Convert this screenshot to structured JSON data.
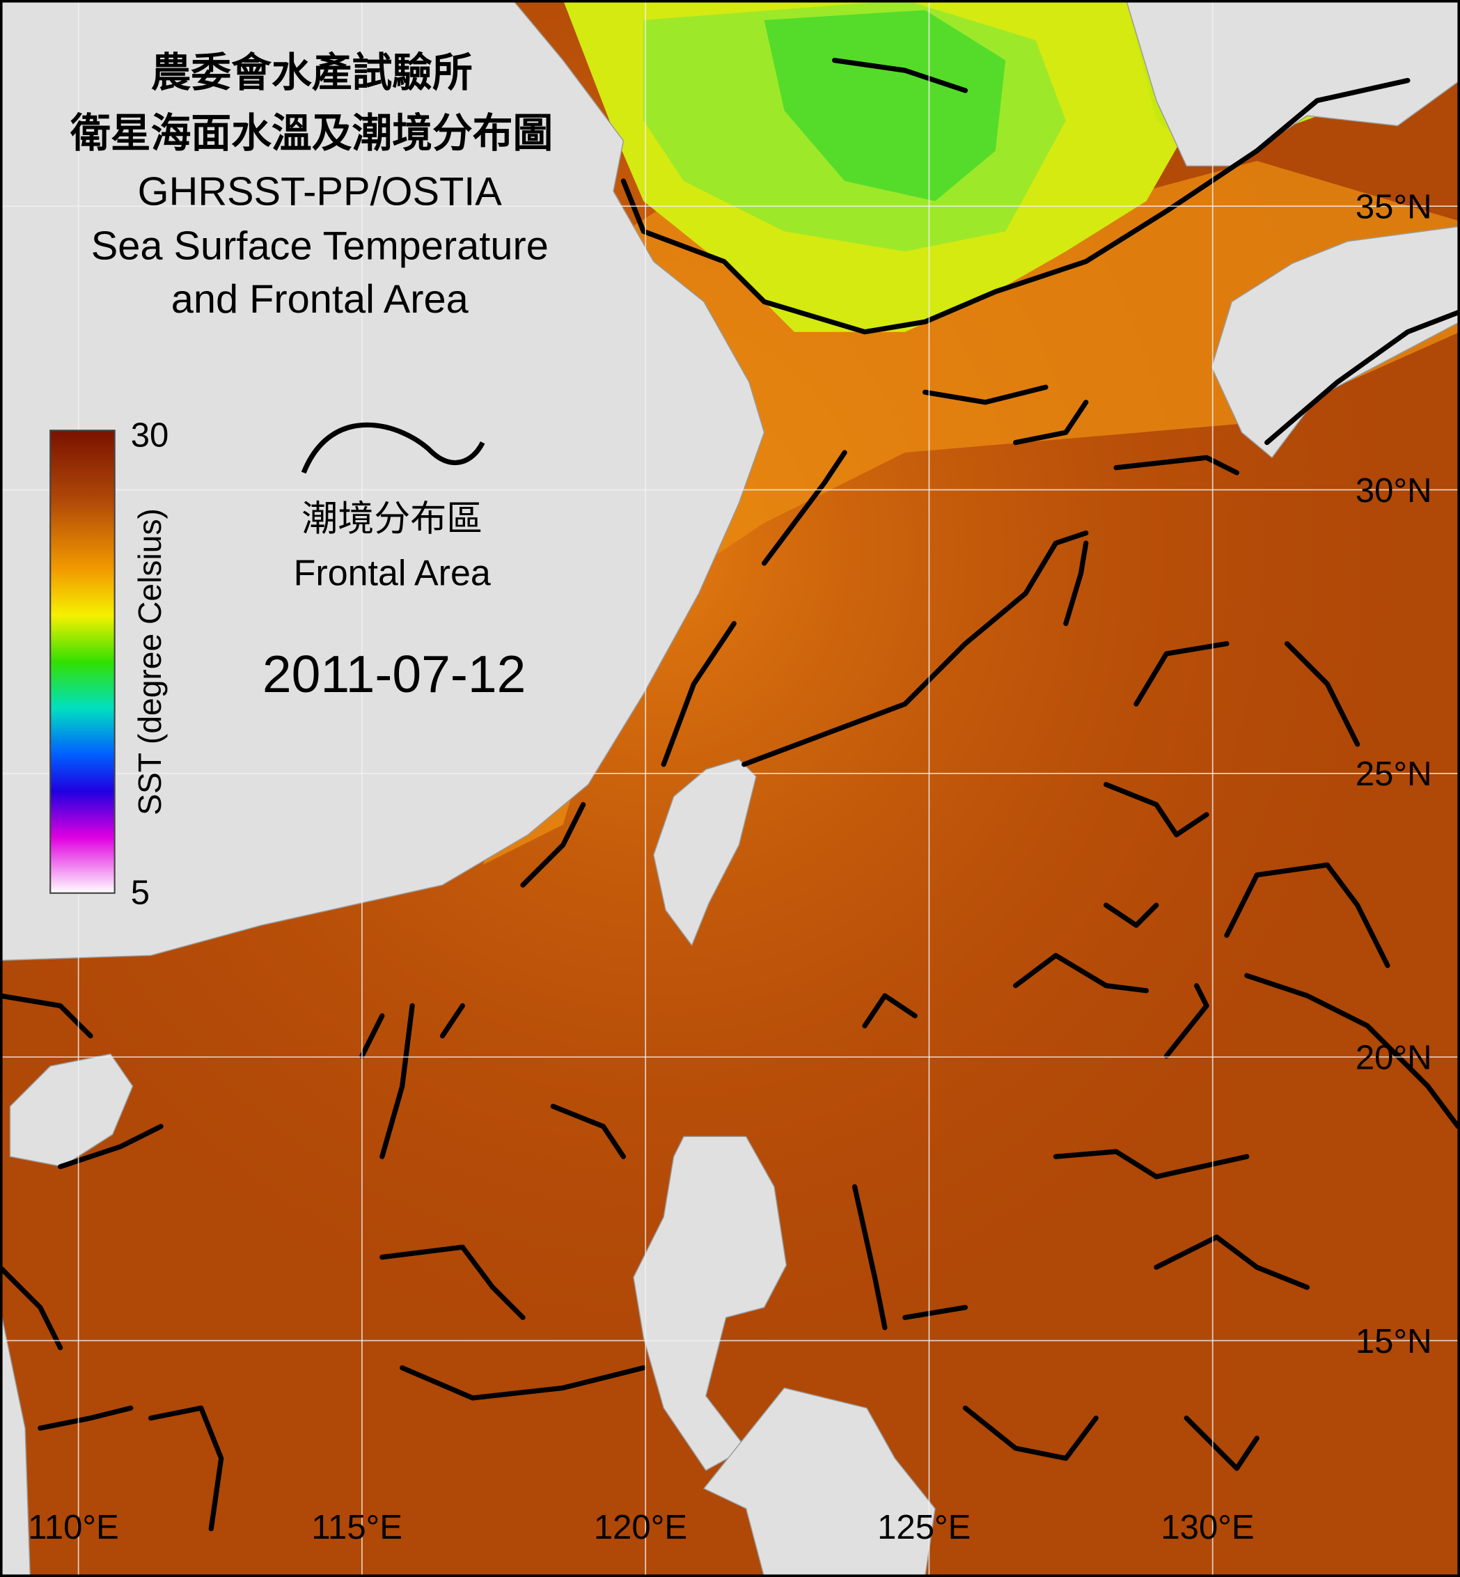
{
  "title": [
    "農委會水產試驗所",
    "衛星海面水溫及潮境分布圖",
    "GHRSST-PP/OSTIA",
    "Sea Surface Temperature",
    "and Frontal Area"
  ],
  "colorbar": {
    "label": "SST (degree Celsius)",
    "max": 30,
    "min": 5
  },
  "legend": {
    "label_zh": "潮境分布區",
    "label_en": "Frontal Area"
  },
  "date": "2011-07-12",
  "lon_ticks": [
    {
      "value": 110,
      "label": "110°E"
    },
    {
      "value": 115,
      "label": "115°E"
    },
    {
      "value": 120,
      "label": "120°E"
    },
    {
      "value": 125,
      "label": "125°E"
    },
    {
      "value": 130,
      "label": "130°E"
    }
  ],
  "lat_ticks": [
    {
      "value": 35,
      "label": "35°N"
    },
    {
      "value": 30,
      "label": "30°N"
    },
    {
      "value": 25,
      "label": "25°N"
    },
    {
      "value": 20,
      "label": "20°N"
    },
    {
      "value": 15,
      "label": "15°N"
    }
  ]
}
